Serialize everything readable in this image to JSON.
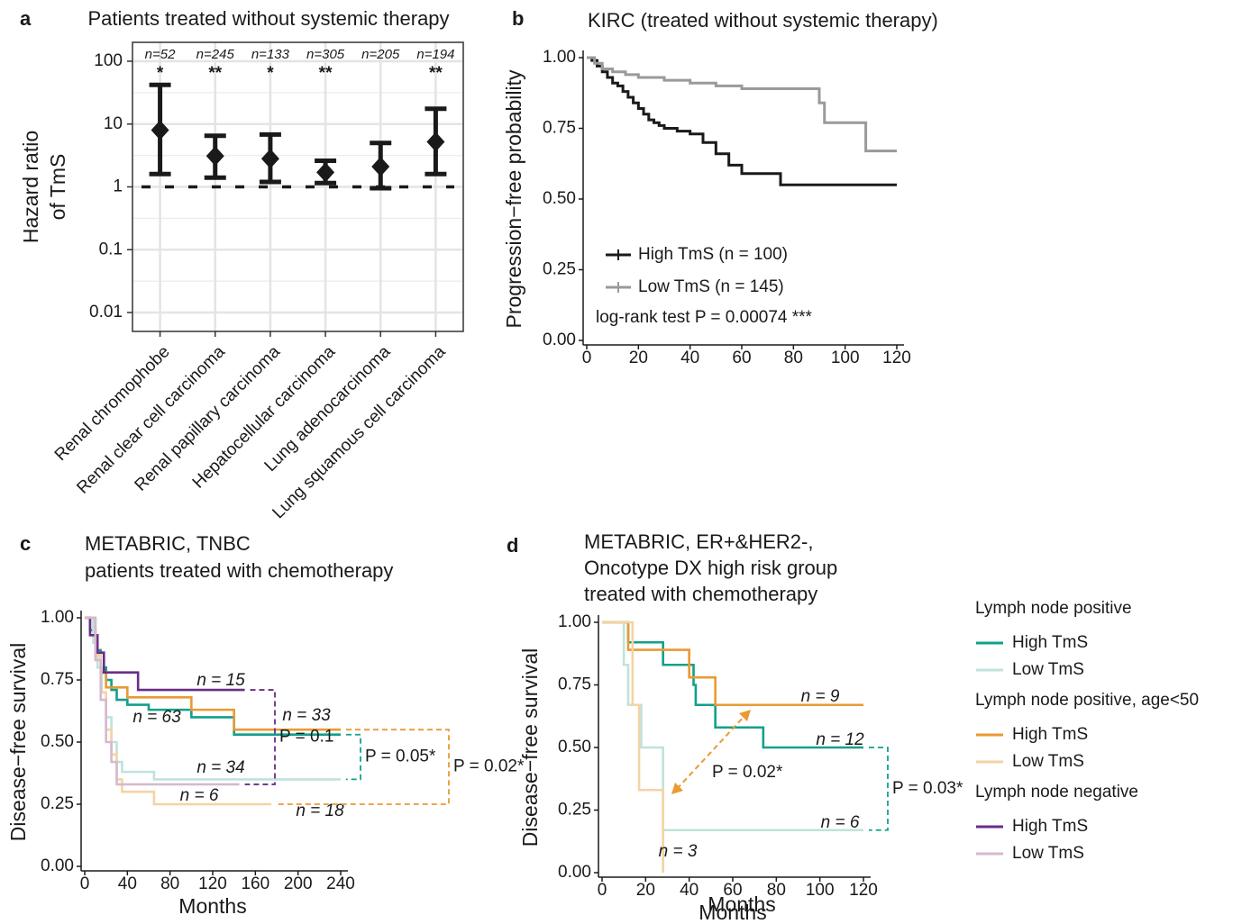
{
  "chart_data": [
    {
      "type": "errorbar",
      "panel": "a",
      "title": "Patients treated without systemic therapy",
      "ylabel": [
        "Hazard ratio",
        "of TmS"
      ],
      "categories": [
        "Renal chromophobe",
        "Renal clear cell carcinoma",
        "Renal papillary carcinoma",
        "Hepatocellular carcinoma",
        "Lung adenocarcinoma",
        "Lung squamous cell carcinoma"
      ],
      "values": [
        8,
        3.1,
        2.8,
        1.7,
        2.1,
        5.2
      ],
      "lower": [
        1.6,
        1.4,
        1.2,
        1.15,
        0.95,
        1.6
      ],
      "upper": [
        42,
        6.5,
        6.8,
        2.6,
        5.0,
        17.5
      ],
      "n_labels": [
        "n=52",
        "n=245",
        "n=133",
        "n=305",
        "n=205",
        "n=194"
      ],
      "significance": [
        "*",
        "**",
        "*",
        "**",
        null,
        "**"
      ],
      "color": "#1a1a1a",
      "log_scale": true,
      "grid": true,
      "refline": 1,
      "ylim": [
        0.005,
        200
      ],
      "yticks": [
        100,
        10,
        1,
        0.1,
        0.01
      ]
    },
    {
      "type": "km",
      "panel": "b",
      "title": [
        "KIRC (treated without systemic therapy)"
      ],
      "xlabel": "Months",
      "ylabel": "Progression−free probability",
      "xlim": [
        0,
        120
      ],
      "xticks": [
        0,
        20,
        40,
        60,
        80,
        100,
        120
      ],
      "ylim": [
        0,
        1
      ],
      "yticks": [
        {
          "value": 0,
          "label": "0.00"
        },
        {
          "value": 0.25,
          "label": "0.25"
        },
        {
          "value": 0.5,
          "label": "0.50"
        },
        {
          "value": 0.75,
          "label": "0.75"
        },
        {
          "value": 1,
          "label": "1.00"
        }
      ],
      "series": [
        {
          "name": "High TmS (n = 100)",
          "color": "#1a1a1a",
          "x": [
            0,
            2,
            4,
            6,
            8,
            10,
            12,
            14,
            16,
            18,
            20,
            22,
            24,
            26,
            28,
            30,
            35,
            40,
            45,
            50,
            55,
            60,
            75,
            120
          ],
          "values": [
            1,
            0.99,
            0.97,
            0.95,
            0.93,
            0.91,
            0.9,
            0.88,
            0.86,
            0.84,
            0.82,
            0.8,
            0.78,
            0.77,
            0.76,
            0.75,
            0.74,
            0.73,
            0.7,
            0.66,
            0.62,
            0.59,
            0.55,
            0.55
          ]
        },
        {
          "name": "Low TmS (n = 145)",
          "color": "#9a9a9a",
          "x": [
            0,
            3,
            6,
            10,
            15,
            20,
            30,
            40,
            50,
            60,
            90,
            92,
            108,
            120
          ],
          "values": [
            1,
            0.98,
            0.96,
            0.95,
            0.94,
            0.93,
            0.92,
            0.91,
            0.9,
            0.89,
            0.84,
            0.77,
            0.67,
            0.67
          ]
        }
      ],
      "annotation": "log-rank test P = 0.00074 ***"
    },
    {
      "type": "km",
      "panel": "c",
      "title": [
        "METABRIC, TNBC",
        "patients treated with chemotherapy"
      ],
      "xlabel": "Months",
      "ylabel": "Disease−free survival",
      "xlim": [
        0,
        240
      ],
      "xticks": [
        0,
        40,
        80,
        120,
        160,
        200,
        240
      ],
      "ylim": [
        0,
        1
      ],
      "yticks": [
        {
          "value": 0,
          "label": "0.00"
        },
        {
          "value": 0.25,
          "label": "0.25"
        },
        {
          "value": 0.5,
          "label": "0.50"
        },
        {
          "value": 0.75,
          "label": "0.75"
        },
        {
          "value": 1,
          "label": "1.00"
        }
      ],
      "series": [
        {
          "n_label": "n = 63",
          "color": "#12a08a",
          "x": [
            0,
            5,
            10,
            15,
            20,
            25,
            30,
            40,
            60,
            100,
            140,
            240
          ],
          "values": [
            1,
            0.95,
            0.87,
            0.8,
            0.75,
            0.71,
            0.67,
            0.65,
            0.63,
            0.6,
            0.53,
            0.53
          ]
        },
        {
          "n_label": "n = 34",
          "color": "#bfe3dc",
          "x": [
            0,
            8,
            12,
            16,
            20,
            25,
            30,
            35,
            65,
            240
          ],
          "values": [
            1,
            0.9,
            0.8,
            0.7,
            0.6,
            0.5,
            0.42,
            0.38,
            0.35,
            0.35
          ]
        },
        {
          "n_label": "n = 33",
          "color": "#e99a33",
          "x": [
            0,
            10,
            15,
            20,
            40,
            100,
            140,
            240
          ],
          "values": [
            1,
            0.85,
            0.78,
            0.72,
            0.68,
            0.63,
            0.55,
            0.55
          ]
        },
        {
          "n_label": "n = 18",
          "color": "#f5d3a4",
          "x": [
            0,
            10,
            15,
            20,
            25,
            30,
            35,
            65,
            175
          ],
          "values": [
            1,
            0.85,
            0.7,
            0.55,
            0.45,
            0.35,
            0.3,
            0.25,
            0.25
          ]
        },
        {
          "n_label": "n = 15",
          "color": "#6a2d86",
          "x": [
            0,
            5,
            12,
            18,
            50,
            150
          ],
          "values": [
            1,
            0.93,
            0.86,
            0.78,
            0.71,
            0.71
          ]
        },
        {
          "n_label": "n = 6",
          "color": "#d6b9cf",
          "x": [
            0,
            10,
            15,
            20,
            25,
            30,
            145
          ],
          "values": [
            1,
            0.83,
            0.67,
            0.5,
            0.42,
            0.33,
            0.33
          ]
        }
      ],
      "comparisons": [
        {
          "label": "P = 0.1",
          "series": [
            4,
            5
          ],
          "color": "#6a2d86"
        },
        {
          "label": "P = 0.05*",
          "series": [
            0,
            1
          ],
          "color": "#12a08a"
        },
        {
          "label": "P = 0.02*",
          "series": [
            2,
            3
          ],
          "color": "#e99a33"
        }
      ]
    },
    {
      "type": "km",
      "panel": "d",
      "title": [
        "METABRIC, ER+&HER2-,",
        "Oncotype DX high risk group",
        "treated with chemotherapy"
      ],
      "xlabel": "Months",
      "ylabel": "Disease−free survival",
      "xlim": [
        0,
        120
      ],
      "xticks": [
        0,
        20,
        40,
        60,
        80,
        100,
        120
      ],
      "ylim": [
        0,
        1
      ],
      "yticks": [
        {
          "value": 0,
          "label": "0.00"
        },
        {
          "value": 0.25,
          "label": "0.25"
        },
        {
          "value": 0.5,
          "label": "0.50"
        },
        {
          "value": 0.75,
          "label": "0.75"
        },
        {
          "value": 1,
          "label": "1.00"
        }
      ],
      "series": [
        {
          "n_label": "n = 12",
          "color": "#12a08a",
          "x": [
            0,
            12,
            28,
            42,
            43,
            52,
            74,
            120
          ],
          "values": [
            1,
            0.92,
            0.83,
            0.75,
            0.67,
            0.58,
            0.5,
            0.5
          ]
        },
        {
          "n_label": "n = 6",
          "color": "#bfe3dc",
          "x": [
            0,
            10,
            12,
            18,
            28,
            120
          ],
          "values": [
            1,
            0.83,
            0.67,
            0.5,
            0.17,
            0.17
          ]
        },
        {
          "n_label": "n = 9",
          "color": "#e99a33",
          "x": [
            0,
            12,
            40,
            52,
            120
          ],
          "values": [
            1,
            0.89,
            0.78,
            0.67,
            0.67
          ]
        },
        {
          "n_label": "n = 3",
          "color": "#f5d3a4",
          "x": [
            0,
            14,
            17,
            28
          ],
          "values": [
            1,
            0.67,
            0.33,
            0
          ]
        }
      ],
      "comparisons": [
        {
          "label": "P = 0.03*",
          "series": [
            0,
            1
          ],
          "color": "#12a08a"
        },
        {
          "label": "P = 0.02*",
          "series": [
            2,
            3
          ],
          "color": "#e99a33",
          "arrow": true
        }
      ],
      "legend": [
        {
          "title": "Lymph node positive",
          "items": [
            {
              "name": "High TmS",
              "color": "#12a08a"
            },
            {
              "name": "Low TmS",
              "color": "#bfe3dc"
            }
          ]
        },
        {
          "title": "Lymph node positive, age<50",
          "items": [
            {
              "name": "High TmS",
              "color": "#e99a33"
            },
            {
              "name": "Low TmS",
              "color": "#f5d3a4"
            }
          ]
        },
        {
          "title": "Lymph node negative",
          "items": [
            {
              "name": "High TmS",
              "color": "#6a2d86"
            },
            {
              "name": "Low TmS",
              "color": "#d6b9cf"
            }
          ]
        }
      ]
    }
  ]
}
